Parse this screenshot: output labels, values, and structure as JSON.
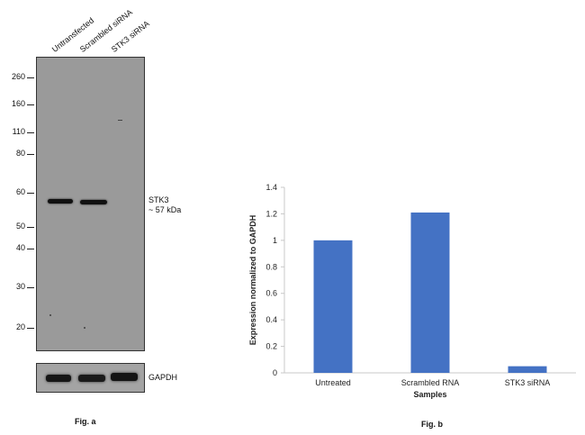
{
  "panel_a": {
    "lanes": [
      "Untransfected",
      "Scrambled siRNA",
      "STK3 siRNA"
    ],
    "mw_markers": [
      "260",
      "160",
      "110",
      "80",
      "60",
      "50",
      "40",
      "30",
      "20"
    ],
    "target_label": "STK3",
    "target_size": "~ 57 kDa",
    "loading_label": "GAPDH",
    "caption": "Fig. a"
  },
  "panel_b": {
    "caption": "Fig. b"
  },
  "chart_data": {
    "type": "bar",
    "categories": [
      "Untreated",
      "Scrambled RNA",
      "STK3 siRNA"
    ],
    "values": [
      1.0,
      1.21,
      0.05
    ],
    "title": "",
    "xlabel": "Samples",
    "ylabel": "Expression normalized to GAPDH",
    "ylim": [
      0,
      1.4
    ],
    "yticks": [
      "0",
      "0.2",
      "0.4",
      "0.6",
      "0.8",
      "1",
      "1.2",
      "1.4"
    ],
    "bar_color": "#4472c4"
  }
}
